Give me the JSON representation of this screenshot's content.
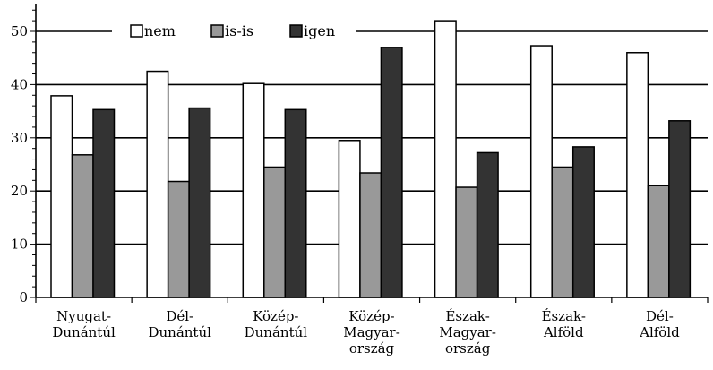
{
  "chart_data": {
    "type": "bar",
    "categories": [
      [
        "Nyugat-",
        "Dunántúl"
      ],
      [
        "Dél-",
        "Dunántúl"
      ],
      [
        "Közép-",
        "Dunántúl"
      ],
      [
        "Közép-",
        "Magyar-",
        "ország"
      ],
      [
        "Észak-",
        "Magyar-",
        "ország"
      ],
      [
        "Észak-",
        "Alföld"
      ],
      [
        "Dél-",
        "Alföld"
      ]
    ],
    "series": [
      {
        "name": "nem",
        "color": "#ffffff",
        "values": [
          37.9,
          42.5,
          40.2,
          29.5,
          52.0,
          47.3,
          46.0
        ]
      },
      {
        "name": "is-is",
        "color": "#999999",
        "values": [
          26.8,
          21.8,
          24.5,
          23.4,
          20.7,
          24.5,
          21.0
        ]
      },
      {
        "name": "igen",
        "color": "#333333",
        "values": [
          35.3,
          35.6,
          35.3,
          47.0,
          27.2,
          28.3,
          33.2
        ]
      }
    ],
    "yticks": [
      0,
      10,
      20,
      30,
      40,
      50
    ],
    "ylim": [
      0,
      55
    ],
    "grid": true,
    "legend_position": "top"
  }
}
